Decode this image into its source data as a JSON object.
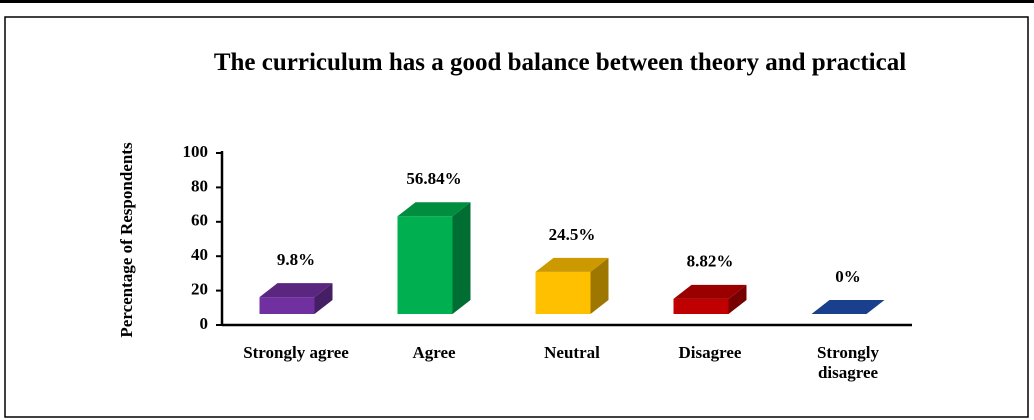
{
  "chart_data": {
    "type": "bar3d",
    "title": "The curriculum has a good balance between theory and practical",
    "y_label": "Percentage of Respondents",
    "categories": [
      "Strongly agree",
      "Agree",
      "Neutral",
      "Disagree",
      "Strongly disagree"
    ],
    "values": [
      9.8,
      56.84,
      24.5,
      8.82,
      0
    ],
    "value_labels": [
      "9.8%",
      "56.84%",
      "24.5%",
      "8.82%",
      "0%"
    ],
    "colors": [
      "#7030a0",
      "#00b050",
      "#ffc000",
      "#c00000",
      "#1f4fb0"
    ],
    "ylim": [
      0,
      100
    ],
    "yticks": [
      0,
      20,
      40,
      60,
      80,
      100
    ]
  }
}
